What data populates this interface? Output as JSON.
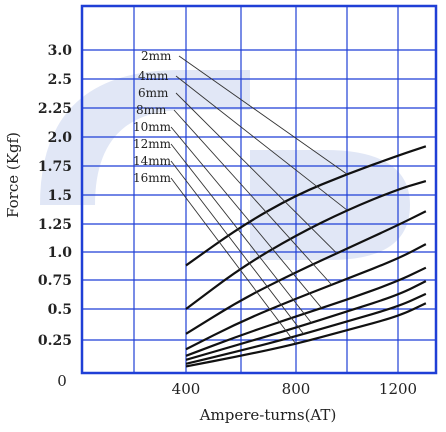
{
  "chart_data": {
    "type": "line",
    "title": "",
    "xlabel": "Ampere-turns(AT)",
    "ylabel": "Force (Kgf)",
    "x_ticks": [
      "0",
      "400",
      "800",
      "1200"
    ],
    "y_ticks": [
      "0.25",
      "0.5",
      "0.75",
      "1.0",
      "1.25",
      "1.5",
      "1.75",
      "2.0",
      "2.25",
      "2.5",
      "3.0"
    ],
    "x_origin_label": "0",
    "x_grid": [
      0,
      200,
      400,
      600,
      800,
      1000,
      1200,
      1350
    ],
    "y_grid": [
      0,
      0.25,
      0.5,
      0.75,
      1.0,
      1.25,
      1.5,
      1.75,
      2.0,
      2.25,
      2.5,
      3.0,
      3.2
    ],
    "xlim": [
      0,
      1350
    ],
    "ylim": [
      0,
      3.2
    ],
    "grid": true,
    "colors": {
      "grid": "#1f3fd6",
      "line": "#111111",
      "watermark": "#c9d4ef"
    },
    "series": [
      {
        "name": "2mm",
        "x": [
          400,
          600,
          800,
          1000,
          1200,
          1310
        ],
        "y": [
          0.88,
          1.23,
          1.5,
          1.68,
          1.84,
          1.92
        ]
      },
      {
        "name": "4mm",
        "x": [
          400,
          600,
          800,
          1000,
          1200,
          1310
        ],
        "y": [
          0.5,
          0.86,
          1.15,
          1.37,
          1.55,
          1.62
        ]
      },
      {
        "name": "6mm",
        "x": [
          400,
          600,
          800,
          1000,
          1200,
          1310
        ],
        "y": [
          0.3,
          0.58,
          0.82,
          1.03,
          1.24,
          1.36
        ]
      },
      {
        "name": "8mm",
        "x": [
          400,
          600,
          800,
          1000,
          1200,
          1310
        ],
        "y": [
          0.18,
          0.4,
          0.59,
          0.76,
          0.94,
          1.07
        ]
      },
      {
        "name": "10mm",
        "x": [
          400,
          600,
          800,
          1000,
          1200,
          1310
        ],
        "y": [
          0.13,
          0.29,
          0.44,
          0.58,
          0.74,
          0.86
        ]
      },
      {
        "name": "12mm",
        "x": [
          400,
          600,
          800,
          1000,
          1200,
          1310
        ],
        "y": [
          0.1,
          0.22,
          0.35,
          0.48,
          0.62,
          0.74
        ]
      },
      {
        "name": "14mm",
        "x": [
          400,
          600,
          800,
          1000,
          1200,
          1310
        ],
        "y": [
          0.07,
          0.17,
          0.28,
          0.4,
          0.52,
          0.63
        ]
      },
      {
        "name": "16mm",
        "x": [
          400,
          600,
          800,
          1000,
          1200,
          1310
        ],
        "y": [
          0.05,
          0.13,
          0.22,
          0.33,
          0.44,
          0.55
        ]
      }
    ]
  }
}
